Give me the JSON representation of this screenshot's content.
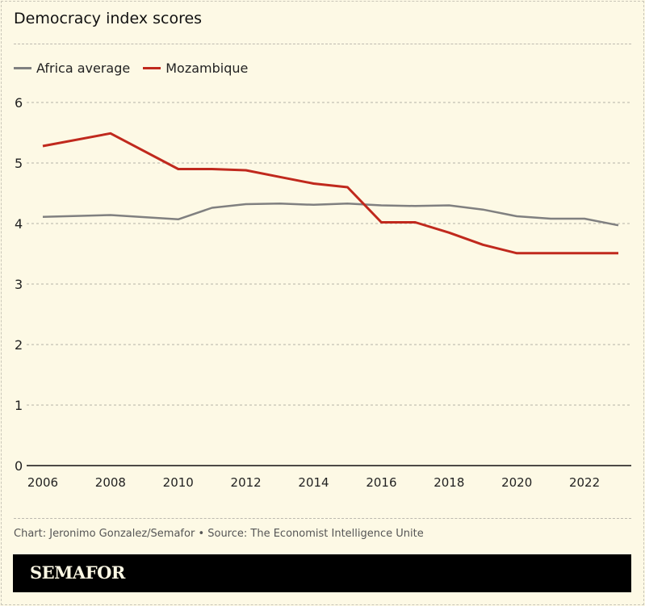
{
  "chart_data": {
    "type": "line",
    "title": "Democracy index scores",
    "x": [
      2006,
      2008,
      2010,
      2011,
      2012,
      2013,
      2014,
      2015,
      2016,
      2017,
      2018,
      2019,
      2020,
      2021,
      2022,
      2023
    ],
    "series": [
      {
        "name": "Africa average",
        "color": "#808080",
        "values": [
          4.11,
          4.14,
          4.07,
          4.26,
          4.32,
          4.33,
          4.31,
          4.33,
          4.3,
          4.29,
          4.3,
          4.23,
          4.12,
          4.08,
          4.08,
          3.97
        ]
      },
      {
        "name": "Mozambique",
        "color": "#c0291d",
        "values": [
          5.28,
          5.49,
          4.9,
          4.9,
          4.88,
          4.77,
          4.66,
          4.6,
          4.02,
          4.02,
          3.85,
          3.65,
          3.51,
          3.51,
          3.51,
          3.51
        ]
      }
    ],
    "ylim": [
      0,
      6
    ],
    "xlim": [
      2006,
      2023
    ],
    "yticks": [
      "0",
      "1",
      "2",
      "3",
      "4",
      "5",
      "6"
    ],
    "xticks": [
      "2006",
      "2008",
      "2010",
      "2012",
      "2014",
      "2016",
      "2018",
      "2020",
      "2022"
    ],
    "grid": true,
    "legend": "top-left"
  },
  "footer": {
    "credit": "Chart: Jeronimo Gonzalez/Semafor • Source: The Economist Intelligence Unite",
    "brand": "SEMAFOR"
  }
}
